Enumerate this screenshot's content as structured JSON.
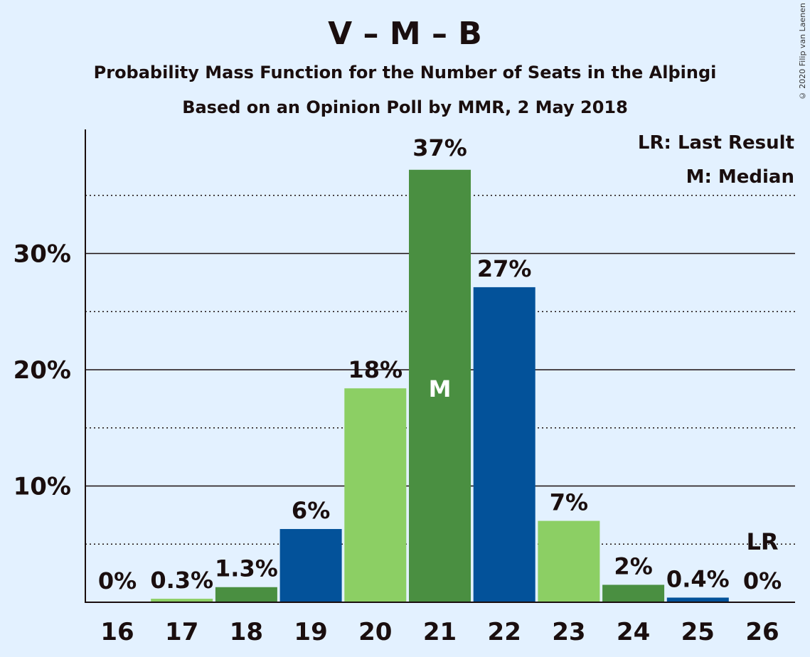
{
  "title": "V – M – B",
  "subtitle1": "Probability Mass Function for the Number of Seats in the Alþingi",
  "subtitle2": "Based on an Opinion Poll by MMR, 2 May 2018",
  "copyright": "© 2020 Filip van Laenen",
  "legend": {
    "lr": "LR: Last Result",
    "median": "M: Median"
  },
  "colors": {
    "background": "#e3f1ff",
    "dark_green": "#4a8f41",
    "light_green": "#8ccf64",
    "blue": "#03529a",
    "text": "#1a0e0e"
  },
  "chart_data": {
    "type": "bar",
    "categories": [
      "16",
      "17",
      "18",
      "19",
      "20",
      "21",
      "22",
      "23",
      "24",
      "25",
      "26"
    ],
    "values": [
      0,
      0.3,
      1.3,
      6.3,
      18.4,
      37.2,
      27.1,
      7.0,
      1.5,
      0.4,
      0
    ],
    "value_labels": [
      "0%",
      "0.3%",
      "1.3%",
      "6%",
      "18%",
      "37%",
      "27%",
      "7%",
      "2%",
      "0.4%",
      "0%"
    ],
    "bar_colors": [
      "light_green",
      "light_green",
      "dark_green",
      "blue",
      "light_green",
      "dark_green",
      "blue",
      "light_green",
      "dark_green",
      "blue",
      "light_green"
    ],
    "ylim": [
      0,
      40
    ],
    "yticks": [
      10,
      20,
      30
    ],
    "ytick_labels": [
      "10%",
      "20%",
      "30%"
    ],
    "minor_gridlines": [
      5,
      15,
      25,
      35
    ],
    "median_category": "21",
    "median_marker": "M",
    "last_result_category": "26",
    "last_result_marker": "LR",
    "legend_position": "top-right"
  }
}
